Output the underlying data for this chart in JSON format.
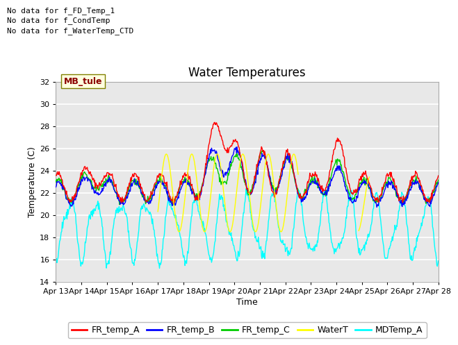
{
  "title": "Water Temperatures",
  "xlabel": "Time",
  "ylabel": "Temperature (C)",
  "ylim": [
    14,
    32
  ],
  "yticks": [
    14,
    16,
    18,
    20,
    22,
    24,
    26,
    28,
    30,
    32
  ],
  "xlim": [
    0,
    360
  ],
  "xtick_labels": [
    "Apr 13",
    "Apr 14",
    "Apr 15",
    "Apr 16",
    "Apr 17",
    "Apr 18",
    "Apr 19",
    "Apr 20",
    "Apr 21",
    "Apr 22",
    "Apr 23",
    "Apr 24",
    "Apr 25",
    "Apr 26",
    "Apr 27",
    "Apr 28"
  ],
  "xtick_positions": [
    0,
    24,
    48,
    72,
    96,
    120,
    144,
    168,
    192,
    216,
    240,
    264,
    288,
    312,
    336,
    360
  ],
  "no_data_texts": [
    "No data for f_FD_Temp_1",
    "No data for f_CondTemp",
    "No data for f_WaterTemp_CTD"
  ],
  "mb_tule_label": "MB_tule",
  "legend_entries": [
    "FR_temp_A",
    "FR_temp_B",
    "FR_temp_C",
    "WaterT",
    "MDTemp_A"
  ],
  "line_colors": [
    "#ff0000",
    "#0000ff",
    "#00cc00",
    "#ffff00",
    "#00ffff"
  ],
  "fig_bg_color": "#ffffff",
  "plot_bg_color": "#e8e8e8",
  "grid_color": "#ffffff",
  "title_fontsize": 12,
  "axis_label_fontsize": 9,
  "tick_fontsize": 8,
  "nodata_fontsize": 8,
  "legend_fontsize": 9
}
